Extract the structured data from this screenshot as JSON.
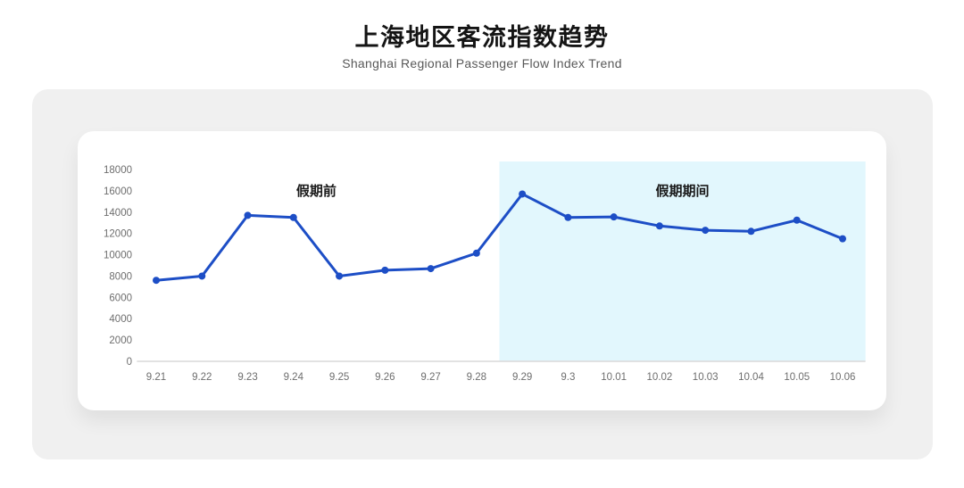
{
  "header": {
    "title": "上海地区客流指数趋势",
    "subtitle": "Shanghai Regional Passenger Flow Index Trend"
  },
  "chart_data": {
    "type": "line",
    "categories": [
      "9.21",
      "9.22",
      "9.23",
      "9.24",
      "9.25",
      "9.26",
      "9.27",
      "9.28",
      "9.29",
      "9.3",
      "10.01",
      "10.02",
      "10.03",
      "10.04",
      "10.05",
      "10.06"
    ],
    "values": [
      7600,
      8000,
      13700,
      13500,
      8000,
      8550,
      8700,
      10150,
      15700,
      13500,
      13550,
      12700,
      12300,
      12200,
      13250,
      11500
    ],
    "ylim": [
      0,
      18000
    ],
    "ytick_step": 2000,
    "grid": false,
    "legend": "none",
    "annotations": [
      {
        "label": "假期前",
        "start_category": "9.21",
        "end_category": "9.28",
        "highlighted": false
      },
      {
        "label": "假期期间",
        "start_category": "9.29",
        "end_category": "10.06",
        "highlighted": true
      }
    ],
    "colors": {
      "line": "#1d4ec6",
      "point": "#1d4ec6",
      "holiday_highlight": "#e2f7fd",
      "axis_line": "#d9d9d9",
      "tick_label": "#6e6e6e",
      "annotation_label": "#1a1a1a"
    }
  }
}
